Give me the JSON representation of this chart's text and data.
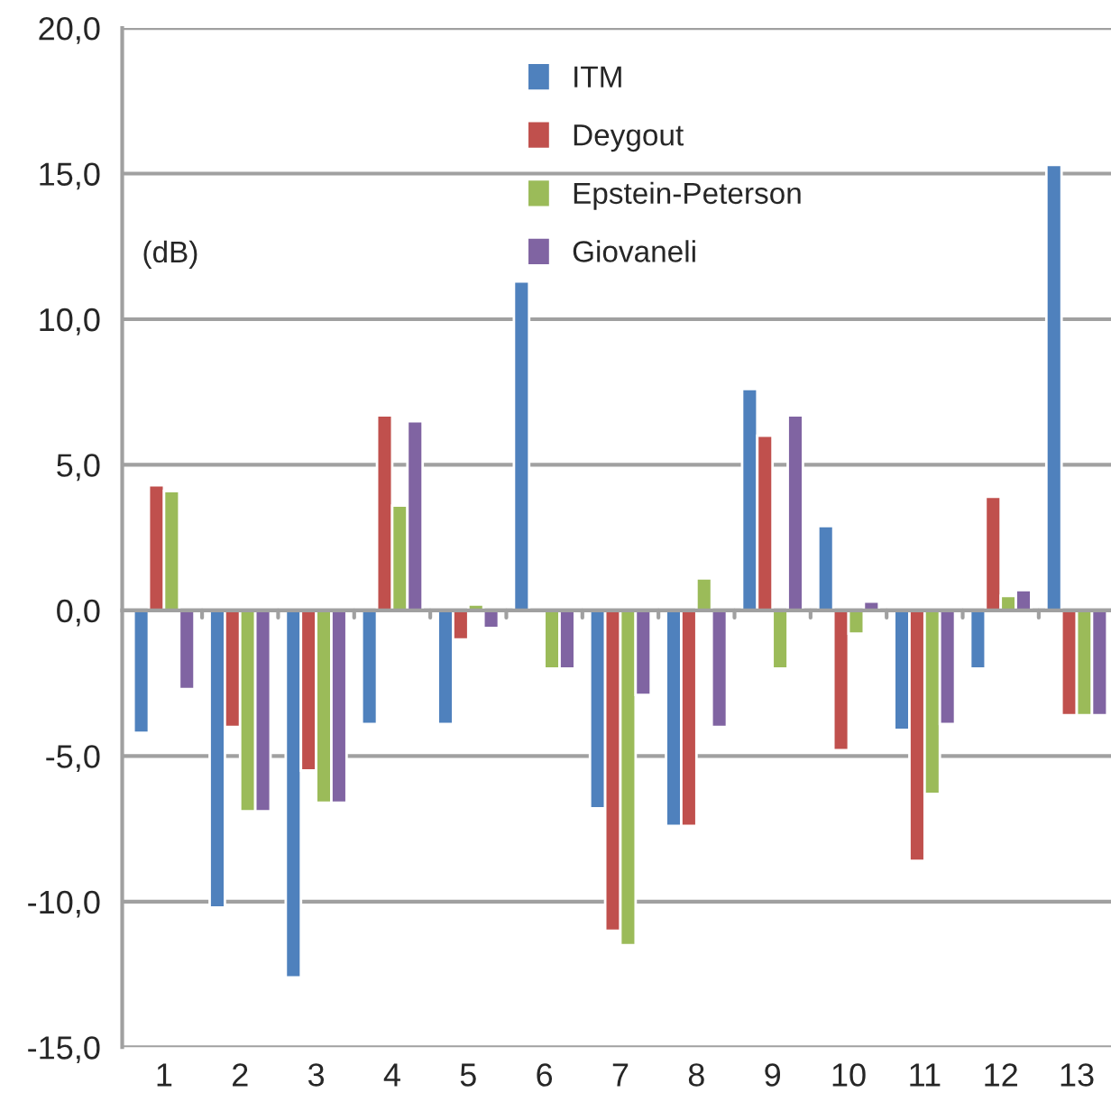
{
  "chart_data": {
    "type": "bar",
    "categories": [
      "1",
      "2",
      "3",
      "4",
      "5",
      "6",
      "7",
      "8",
      "9",
      "10",
      "11",
      "12",
      "13"
    ],
    "series": [
      {
        "name": "ITM",
        "color": "#4f81bd",
        "values": [
          -4.2,
          -10.2,
          -12.6,
          -3.9,
          -3.9,
          11.3,
          -6.8,
          -7.4,
          7.6,
          2.9,
          -4.1,
          -2.0,
          15.3
        ]
      },
      {
        "name": "Deygout",
        "color": "#c0504d",
        "values": [
          4.3,
          -4.0,
          -5.5,
          6.7,
          -1.0,
          null,
          -11.0,
          -7.4,
          6.0,
          -4.8,
          -8.6,
          3.9,
          -3.6
        ]
      },
      {
        "name": "Epstein-Peterson",
        "color": "#9bbb59",
        "values": [
          4.1,
          -6.9,
          -6.6,
          3.6,
          0.2,
          -2.0,
          -11.5,
          1.1,
          -2.0,
          -0.8,
          -6.3,
          0.5,
          -3.6
        ]
      },
      {
        "name": "Giovaneli",
        "color": "#8064a2",
        "values": [
          -2.7,
          -6.9,
          -6.6,
          6.5,
          -0.6,
          -2.0,
          -2.9,
          -4.0,
          6.7,
          0.3,
          -3.9,
          0.7,
          -3.6
        ]
      }
    ],
    "ylim": [
      -15,
      20
    ],
    "yticks": [
      {
        "value": -15,
        "label": "-15,0"
      },
      {
        "value": -10,
        "label": "-10,0"
      },
      {
        "value": -5,
        "label": "-5,0"
      },
      {
        "value": 0,
        "label": "0,0"
      },
      {
        "value": 5,
        "label": "5,0"
      },
      {
        "value": 10,
        "label": "10,0"
      },
      {
        "value": 15,
        "label": "15,0"
      },
      {
        "value": 20,
        "label": "20,0"
      }
    ],
    "annotations": [
      "(dB)"
    ],
    "grid": "y",
    "legend": "top"
  }
}
